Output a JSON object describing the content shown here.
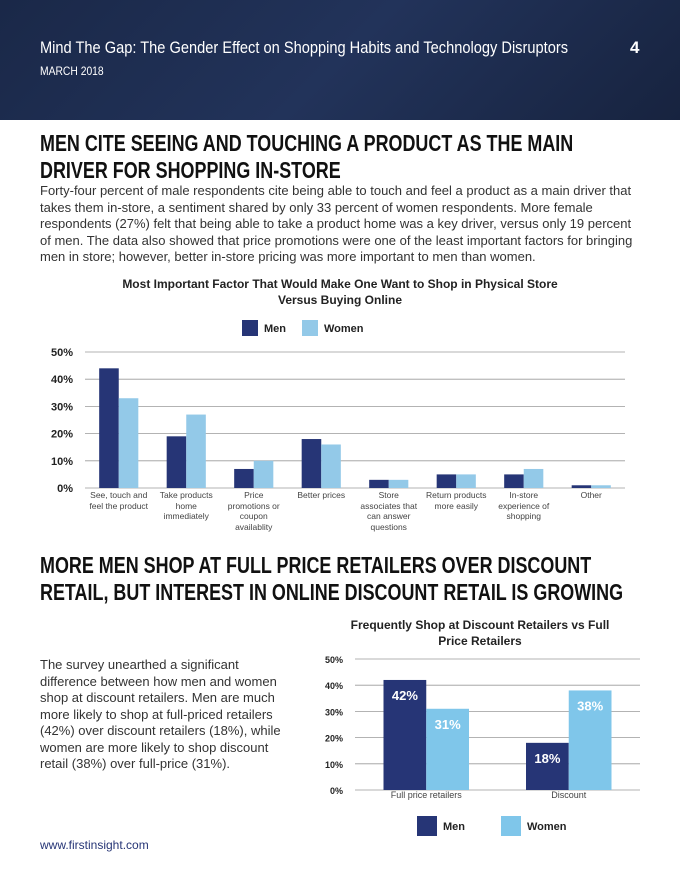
{
  "header": {
    "title": "Mind The Gap:  The Gender Effect on Shopping Habits and Technology Disruptors",
    "date": "MARCH 2018",
    "page_number": "4"
  },
  "sections": [
    {
      "heading": "MEN CITE SEEING AND TOUCHING A PRODUCT AS THE MAIN DRIVER FOR SHOPPING IN-STORE",
      "text": "Forty-four percent of male respondents cite being able to touch and feel a product as a main driver that takes them in-store, a sentiment shared by only 33 percent of women respondents. More female respondents (27%) felt that being able to take a product home was a key driver, versus only 19 percent of men. The data also showed that price promotions were one of the least important factors for bringing men in store; however, better in-store pricing was more important to men than women."
    },
    {
      "heading": "MORE MEN SHOP AT FULL PRICE RETAILERS OVER DISCOUNT RETAIL, BUT INTEREST IN ONLINE DISCOUNT RETAIL IS GROWING",
      "text": "The survey unearthed a significant difference between how men and women shop at discount retailers. Men are much more likely to shop at full-priced retailers (42%) over discount retailers (18%), while women are more likely to shop discount retail (38%) over full-price (31%)."
    }
  ],
  "chart_data": [
    {
      "type": "bar",
      "title": "Most Important Factor That Would Make One Want to Shop in Physical Store Versus Buying Online",
      "categories": [
        "See, touch and feel the product",
        "Take products home immediately",
        "Price promotions or coupon availablity",
        "Better prices",
        "Store associates that can answer questions",
        "Return products more easily",
        "In-store experience of shopping",
        "Other"
      ],
      "series": [
        {
          "name": "Men",
          "color": "#263576",
          "values": [
            44,
            19,
            7,
            18,
            3,
            5,
            5,
            1
          ]
        },
        {
          "name": "Women",
          "color": "#93c9e8",
          "values": [
            33,
            27,
            10,
            16,
            3,
            5,
            7,
            1
          ]
        }
      ],
      "ylim": [
        0,
        50
      ],
      "yticks": [
        {
          "value": 0,
          "label": "0%"
        },
        {
          "value": 10,
          "label": "10%"
        },
        {
          "value": 20,
          "label": "20%"
        },
        {
          "value": 30,
          "label": "30%"
        },
        {
          "value": 40,
          "label": "40%"
        },
        {
          "value": 50,
          "label": "50%"
        }
      ],
      "grid": true,
      "legend": "top"
    },
    {
      "type": "bar",
      "title": "Frequently Shop at Discount Retailers vs Full Price Retailers",
      "categories": [
        "Full price retailers",
        "Discount"
      ],
      "series": [
        {
          "name": "Men",
          "color": "#263576",
          "values": [
            42,
            18
          ],
          "value_labels": [
            "42%",
            "18%"
          ]
        },
        {
          "name": "Women",
          "color": "#7fc6ea",
          "values": [
            31,
            38
          ],
          "value_labels": [
            "31%",
            "38%"
          ]
        }
      ],
      "ylim": [
        0,
        50
      ],
      "yticks": [
        {
          "value": 0,
          "label": "0%"
        },
        {
          "value": 10,
          "label": "10%"
        },
        {
          "value": 20,
          "label": "20%"
        },
        {
          "value": 30,
          "label": "30%"
        },
        {
          "value": 40,
          "label": "40%"
        },
        {
          "value": 50,
          "label": "50%"
        }
      ],
      "grid": true,
      "legend": "bottom"
    }
  ],
  "footer": {
    "url": "www.firstinsight.com"
  }
}
